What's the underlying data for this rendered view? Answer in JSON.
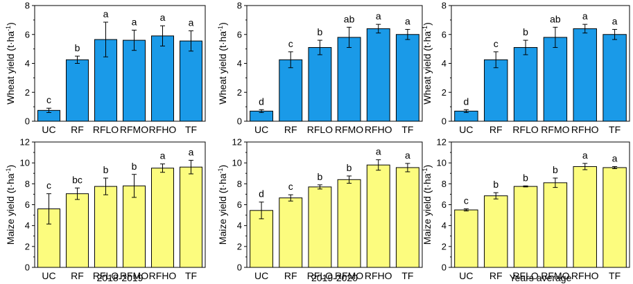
{
  "colors": {
    "wheat": "#1a9ae8",
    "maize": "#fcfc7e",
    "stroke": "#000000"
  },
  "superscript": "-1",
  "chart_data": [
    {
      "id": "w1",
      "type": "bar",
      "crop": "wheat",
      "ylabel": "Wheat yield (t·ha",
      "ylim": [
        0,
        8
      ],
      "yticks": [
        0,
        2,
        4,
        6,
        8
      ],
      "categories": [
        "UC",
        "RF",
        "RFLO",
        "RFMO",
        "RFHO",
        "TF"
      ],
      "values": [
        0.75,
        4.25,
        5.65,
        5.6,
        5.9,
        5.55
      ],
      "errors": [
        0.15,
        0.25,
        1.2,
        0.7,
        0.7,
        0.7
      ],
      "letters": [
        "c",
        "b",
        "a",
        "a",
        "a",
        "a"
      ]
    },
    {
      "id": "w2",
      "type": "bar",
      "crop": "wheat",
      "ylabel": "Wheat yield (t·ha",
      "ylim": [
        0,
        8
      ],
      "yticks": [
        0,
        2,
        4,
        6,
        8
      ],
      "categories": [
        "UC",
        "RF",
        "RFLO",
        "RFMO",
        "RFHO",
        "TF"
      ],
      "values": [
        0.7,
        4.25,
        5.1,
        5.8,
        6.4,
        6.0
      ],
      "errors": [
        0.1,
        0.55,
        0.5,
        0.7,
        0.3,
        0.35
      ],
      "letters": [
        "d",
        "c",
        "b",
        "ab",
        "a",
        "a"
      ]
    },
    {
      "id": "w3",
      "type": "bar",
      "crop": "wheat",
      "ylabel": "Wheat yield (t·ha",
      "ylim": [
        0,
        8
      ],
      "yticks": [
        0,
        2,
        4,
        6,
        8
      ],
      "categories": [
        "UC",
        "RF",
        "RFLO",
        "RFMO",
        "RFHO",
        "TF"
      ],
      "values": [
        0.7,
        4.25,
        5.1,
        5.8,
        6.4,
        6.0
      ],
      "errors": [
        0.1,
        0.55,
        0.5,
        0.7,
        0.3,
        0.35
      ],
      "letters": [
        "d",
        "c",
        "b",
        "ab",
        "a",
        "a"
      ]
    },
    {
      "id": "m1",
      "type": "bar",
      "crop": "maize",
      "ylabel": "Maize yield (t·ha",
      "ylim": [
        0,
        12
      ],
      "yticks": [
        0,
        2,
        4,
        6,
        8,
        10,
        12
      ],
      "categories": [
        "UC",
        "RF",
        "RFLO",
        "RFMO",
        "RFHO",
        "TF"
      ],
      "values": [
        5.6,
        7.05,
        7.75,
        7.8,
        9.5,
        9.6
      ],
      "errors": [
        1.45,
        0.55,
        0.8,
        1.1,
        0.4,
        0.65
      ],
      "letters": [
        "c",
        "bc",
        "b",
        "b",
        "a",
        "a"
      ],
      "period": "2018-2019"
    },
    {
      "id": "m2",
      "type": "bar",
      "crop": "maize",
      "ylabel": "Maize yield (t·ha",
      "ylim": [
        0,
        12
      ],
      "yticks": [
        0,
        2,
        4,
        6,
        8,
        10,
        12
      ],
      "categories": [
        "UC",
        "RF",
        "RFLO",
        "RFMO",
        "RFHO",
        "TF"
      ],
      "values": [
        5.45,
        6.65,
        7.7,
        8.4,
        9.8,
        9.55
      ],
      "errors": [
        0.8,
        0.3,
        0.2,
        0.35,
        0.5,
        0.4
      ],
      "letters": [
        "d",
        "c",
        "b",
        "b",
        "a",
        "a"
      ],
      "period": "2019-2020"
    },
    {
      "id": "m3",
      "type": "bar",
      "crop": "maize",
      "ylabel": "Maize yield (t·ha",
      "ylim": [
        0,
        12
      ],
      "yticks": [
        0,
        2,
        4,
        6,
        8,
        10,
        12
      ],
      "categories": [
        "UC",
        "RF",
        "RFLO",
        "RFMO",
        "RFHO",
        "TF"
      ],
      "values": [
        5.5,
        6.85,
        7.75,
        8.1,
        9.65,
        9.55
      ],
      "errors": [
        0.1,
        0.3,
        0.05,
        0.45,
        0.3,
        0.1
      ],
      "letters": [
        "c",
        "b",
        "b",
        "b",
        "a",
        "a"
      ],
      "period": "Years average"
    }
  ]
}
